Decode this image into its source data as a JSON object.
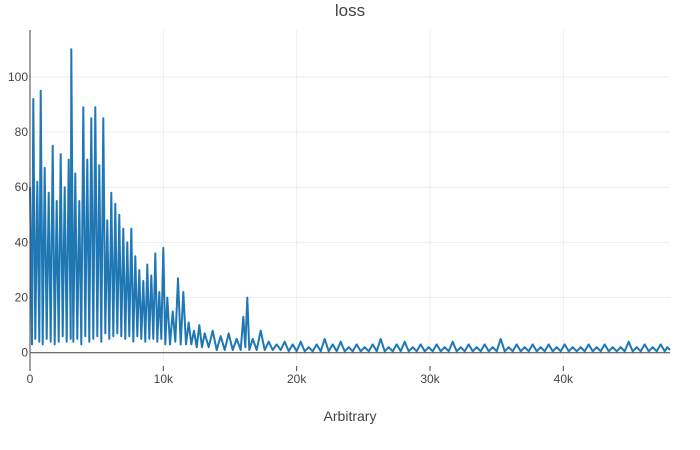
{
  "chart_data": {
    "type": "line",
    "title": "loss",
    "xlabel": "Arbitrary",
    "ylabel": "",
    "xlim": [
      0,
      48000
    ],
    "ylim": [
      -3,
      117
    ],
    "x_ticks": [
      {
        "value": 0,
        "label": "0"
      },
      {
        "value": 10000,
        "label": "10k"
      },
      {
        "value": 20000,
        "label": "20k"
      },
      {
        "value": 30000,
        "label": "30k"
      },
      {
        "value": 40000,
        "label": "40k"
      }
    ],
    "y_ticks": [
      {
        "value": 0,
        "label": "0"
      },
      {
        "value": 20,
        "label": "20"
      },
      {
        "value": 40,
        "label": "40"
      },
      {
        "value": 60,
        "label": "60"
      },
      {
        "value": 80,
        "label": "80"
      },
      {
        "value": 100,
        "label": "100"
      }
    ],
    "grid": true,
    "legend": "none",
    "series": [
      {
        "color": "#1f77b4",
        "points": [
          [
            0,
            60
          ],
          [
            150,
            3
          ],
          [
            250,
            92
          ],
          [
            400,
            5
          ],
          [
            550,
            62
          ],
          [
            700,
            4
          ],
          [
            800,
            95
          ],
          [
            950,
            3
          ],
          [
            1100,
            67
          ],
          [
            1250,
            5
          ],
          [
            1400,
            58
          ],
          [
            1550,
            4
          ],
          [
            1700,
            75
          ],
          [
            1850,
            3
          ],
          [
            2000,
            55
          ],
          [
            2150,
            4
          ],
          [
            2300,
            72
          ],
          [
            2450,
            6
          ],
          [
            2600,
            60
          ],
          [
            2750,
            4
          ],
          [
            2900,
            70
          ],
          [
            3050,
            5
          ],
          [
            3100,
            110
          ],
          [
            3250,
            4
          ],
          [
            3400,
            65
          ],
          [
            3550,
            5
          ],
          [
            3700,
            55
          ],
          [
            3850,
            3
          ],
          [
            4000,
            89
          ],
          [
            4150,
            6
          ],
          [
            4300,
            70
          ],
          [
            4450,
            4
          ],
          [
            4600,
            85
          ],
          [
            4750,
            5
          ],
          [
            4900,
            89
          ],
          [
            5050,
            6
          ],
          [
            5200,
            68
          ],
          [
            5350,
            4
          ],
          [
            5500,
            85
          ],
          [
            5650,
            7
          ],
          [
            5800,
            48
          ],
          [
            5950,
            5
          ],
          [
            6100,
            58
          ],
          [
            6250,
            6
          ],
          [
            6400,
            54
          ],
          [
            6550,
            7
          ],
          [
            6700,
            50
          ],
          [
            6850,
            6
          ],
          [
            7000,
            45
          ],
          [
            7150,
            5
          ],
          [
            7300,
            40
          ],
          [
            7450,
            6
          ],
          [
            7600,
            45
          ],
          [
            7750,
            4
          ],
          [
            7900,
            35
          ],
          [
            8050,
            6
          ],
          [
            8200,
            30
          ],
          [
            8350,
            5
          ],
          [
            8500,
            26
          ],
          [
            8650,
            4
          ],
          [
            8800,
            32
          ],
          [
            8950,
            5
          ],
          [
            9100,
            28
          ],
          [
            9250,
            5
          ],
          [
            9400,
            36
          ],
          [
            9550,
            4
          ],
          [
            9700,
            22
          ],
          [
            9850,
            5
          ],
          [
            10000,
            38
          ],
          [
            10150,
            3
          ],
          [
            10300,
            20
          ],
          [
            10500,
            3
          ],
          [
            10700,
            15
          ],
          [
            10900,
            4
          ],
          [
            11100,
            27
          ],
          [
            11300,
            3
          ],
          [
            11500,
            22
          ],
          [
            11700,
            3
          ],
          [
            11900,
            11
          ],
          [
            12100,
            3
          ],
          [
            12300,
            8
          ],
          [
            12500,
            2
          ],
          [
            12700,
            10
          ],
          [
            12900,
            2
          ],
          [
            13100,
            7
          ],
          [
            13400,
            2
          ],
          [
            13700,
            8
          ],
          [
            14000,
            1
          ],
          [
            14300,
            6
          ],
          [
            14600,
            1
          ],
          [
            14900,
            7
          ],
          [
            15200,
            1
          ],
          [
            15500,
            5
          ],
          [
            15800,
            1
          ],
          [
            16000,
            13
          ],
          [
            16150,
            2
          ],
          [
            16300,
            20
          ],
          [
            16450,
            1
          ],
          [
            16700,
            5
          ],
          [
            17000,
            1
          ],
          [
            17300,
            8
          ],
          [
            17600,
            1
          ],
          [
            17900,
            4
          ],
          [
            18200,
            1
          ],
          [
            18500,
            3
          ],
          [
            18800,
            1
          ],
          [
            19100,
            4
          ],
          [
            19400,
            0.5
          ],
          [
            19700,
            3
          ],
          [
            20000,
            0.5
          ],
          [
            20300,
            4
          ],
          [
            20600,
            0.5
          ],
          [
            20900,
            2
          ],
          [
            21200,
            0.5
          ],
          [
            21500,
            3
          ],
          [
            21800,
            0.5
          ],
          [
            22100,
            5
          ],
          [
            22400,
            0.5
          ],
          [
            22700,
            3
          ],
          [
            23000,
            0.5
          ],
          [
            23300,
            4
          ],
          [
            23600,
            0.5
          ],
          [
            23900,
            2
          ],
          [
            24200,
            0.5
          ],
          [
            24500,
            3
          ],
          [
            24800,
            0.5
          ],
          [
            25100,
            2
          ],
          [
            25400,
            0.5
          ],
          [
            25700,
            3
          ],
          [
            26000,
            0.5
          ],
          [
            26300,
            5
          ],
          [
            26600,
            0.5
          ],
          [
            26900,
            2
          ],
          [
            27200,
            0.5
          ],
          [
            27500,
            3
          ],
          [
            27800,
            0.5
          ],
          [
            28100,
            4
          ],
          [
            28400,
            0.5
          ],
          [
            28700,
            2
          ],
          [
            29000,
            0.5
          ],
          [
            29300,
            3
          ],
          [
            29600,
            0.5
          ],
          [
            29900,
            2
          ],
          [
            30200,
            0.5
          ],
          [
            30500,
            3
          ],
          [
            30800,
            0.5
          ],
          [
            31100,
            2
          ],
          [
            31400,
            0.5
          ],
          [
            31700,
            4
          ],
          [
            32000,
            0.5
          ],
          [
            32300,
            2
          ],
          [
            32600,
            0.5
          ],
          [
            32900,
            3
          ],
          [
            33200,
            0.5
          ],
          [
            33500,
            2
          ],
          [
            33800,
            0.5
          ],
          [
            34100,
            3
          ],
          [
            34400,
            0.5
          ],
          [
            34700,
            2
          ],
          [
            35000,
            0.5
          ],
          [
            35300,
            5
          ],
          [
            35600,
            0.5
          ],
          [
            35900,
            2
          ],
          [
            36200,
            0.5
          ],
          [
            36500,
            3
          ],
          [
            36800,
            0.5
          ],
          [
            37100,
            2
          ],
          [
            37400,
            0.5
          ],
          [
            37700,
            3
          ],
          [
            38000,
            0.5
          ],
          [
            38300,
            2
          ],
          [
            38600,
            0.5
          ],
          [
            38900,
            3
          ],
          [
            39200,
            0.5
          ],
          [
            39500,
            2
          ],
          [
            39800,
            0.5
          ],
          [
            40100,
            3
          ],
          [
            40400,
            0.5
          ],
          [
            40700,
            2
          ],
          [
            41000,
            0.5
          ],
          [
            41300,
            2
          ],
          [
            41600,
            0.5
          ],
          [
            41900,
            3
          ],
          [
            42200,
            0.5
          ],
          [
            42500,
            2
          ],
          [
            42800,
            0.5
          ],
          [
            43100,
            3
          ],
          [
            43400,
            0.5
          ],
          [
            43700,
            2
          ],
          [
            44000,
            0.5
          ],
          [
            44300,
            2
          ],
          [
            44600,
            0.5
          ],
          [
            44900,
            4
          ],
          [
            45200,
            0.5
          ],
          [
            45500,
            2
          ],
          [
            45800,
            0.5
          ],
          [
            46100,
            3
          ],
          [
            46400,
            0.5
          ],
          [
            46700,
            2
          ],
          [
            47000,
            0.5
          ],
          [
            47300,
            3
          ],
          [
            47600,
            0.5
          ],
          [
            47800,
            2
          ],
          [
            48000,
            1
          ]
        ]
      }
    ]
  }
}
